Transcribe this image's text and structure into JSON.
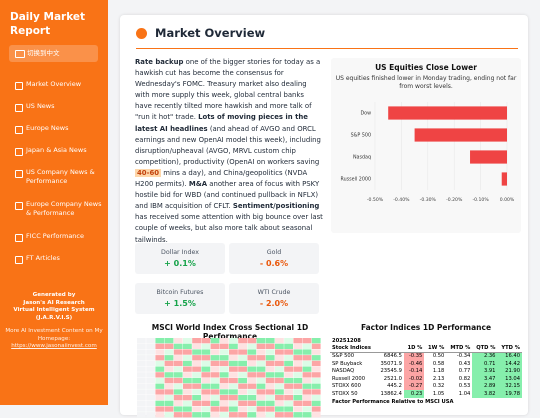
{
  "sidebar": {
    "title": "Daily Market Report",
    "language_button": "切换到中文",
    "nav": [
      "Market Overview",
      "US News",
      "Europe News",
      "Japan & Asia News",
      "US Company News & Performance",
      "Europe Company News & Performance",
      "FICC Performance",
      "FT Articles"
    ],
    "footer": {
      "generated": [
        "Generated by",
        "Jason's AI Research",
        "Virtual Intelligent System",
        "(J.A.R.V.I.S)"
      ],
      "more": "More AI Investment Content on My Homepage:",
      "link": "https://www.jasonaiinvest.com"
    }
  },
  "main": {
    "title": "Market Overview",
    "paragraph": [
      {
        "text": "Rate backup",
        "style": "bold"
      },
      {
        "text": " one of the bigger stories for today as a hawkish cut has become the consensus for Wednesday's FOMC. Treasury market also dealing with more supply this week, global central banks have recently tilted more hawkish and more talk of \"run it hot\" trade. ",
        "style": "plain"
      },
      {
        "text": "Lots of moving pieces in the latest AI headlines",
        "style": "bold"
      },
      {
        "text": " (and ahead of AVGO and ORCL earnings and new OpenAI model this week), including disruption/upheaval (AVGO, MRVL custom chip competition), productivity (OpenAI on workers saving ",
        "style": "plain"
      },
      {
        "text": "40-60",
        "style": "highlight"
      },
      {
        "text": " mins a day), and China/geopolitics (NVDA H200 permits). ",
        "style": "plain"
      },
      {
        "text": "M&A",
        "style": "bold"
      },
      {
        "text": " another area of focus with PSKY hostile bid for WBD (and continued pullback in NFLX) and IBM acquisition of CFLT. ",
        "style": "plain"
      },
      {
        "text": "Sentiment/positioning",
        "style": "bold"
      },
      {
        "text": " has received some attention with big bounce over last couple of weeks, but also more talk about seasonal tailwinds.",
        "style": "plain"
      }
    ],
    "stats": [
      {
        "label": "Dollar Index",
        "value": "+ 0.1%"
      },
      {
        "label": "Gold",
        "value": "- 0.6%"
      },
      {
        "label": "Bitcoin Futures",
        "value": "+ 1.5%"
      },
      {
        "label": "WTI Crude",
        "value": "- 2.0%"
      }
    ],
    "heatmap_title": "MSCI World Index Cross Sectional 1D Performance",
    "factor_title": "Factor Indices 1D Performance",
    "factor_table": {
      "date": "20251208",
      "columns": [
        "Stock Indices",
        "",
        "1D %",
        "1W %",
        "MTD %",
        "QTD %",
        "YTD %"
      ],
      "rows": [
        [
          "S&P 500",
          "6846.5",
          "-0.35",
          "0.50",
          "-0.34",
          "2.36",
          "16.40"
        ],
        [
          "SP Buyback",
          "35071.9",
          "-0.46",
          "0.58",
          "0.43",
          "0.71",
          "14.42"
        ],
        [
          "NASDAQ",
          "23545.9",
          "-0.14",
          "1.18",
          "0.77",
          "3.91",
          "21.90"
        ],
        [
          "Russell 2000",
          "2521.0",
          "-0.02",
          "2.13",
          "0.82",
          "3.47",
          "13.04"
        ],
        [
          "STOXX 600",
          "445.2",
          "-0.27",
          "0.32",
          "0.53",
          "2.89",
          "32.15"
        ],
        [
          "STOXX 50",
          "13862.4",
          "0.23",
          "1.05",
          "1.04",
          "3.82",
          "19.78"
        ]
      ],
      "footer": "Factor Performance Relative to MSCI USA"
    }
  },
  "chart_data": {
    "type": "hbar",
    "title": "US Equities Close Lower",
    "subtitle": "US equities finished lower in Monday trading, ending not far from worst levels.",
    "categories": [
      "Dow",
      "S&P 500",
      "Nasdaq",
      "Russell 2000"
    ],
    "values": [
      -0.45,
      -0.35,
      -0.14,
      -0.02
    ],
    "color": "#ef4444",
    "xlim": [
      -0.5,
      0
    ],
    "xticks": [
      {
        "value": -0.5,
        "label": "-0.50%"
      },
      {
        "value": -0.4,
        "label": "-0.40%"
      },
      {
        "value": -0.3,
        "label": "-0.30%"
      },
      {
        "value": -0.2,
        "label": "-0.20%"
      },
      {
        "value": -0.1,
        "label": "-0.10%"
      },
      {
        "value": 0,
        "label": "0.00%"
      }
    ],
    "grid": true
  }
}
